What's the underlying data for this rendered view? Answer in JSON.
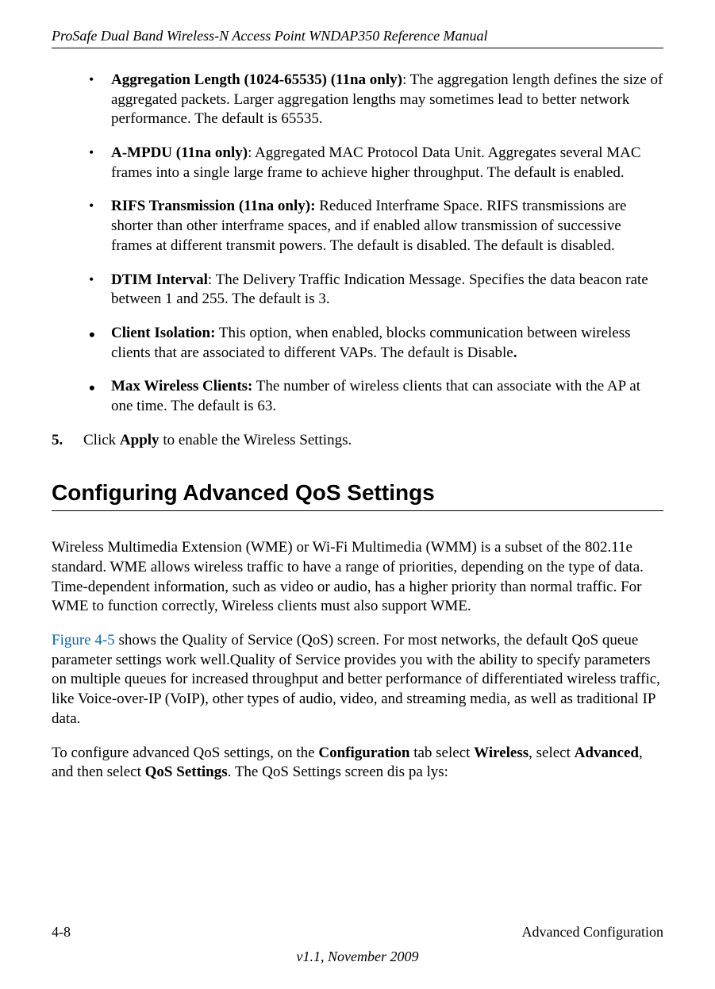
{
  "header": {
    "title": "ProSafe Dual Band Wireless-N Access Point WNDAP350 Reference Manual"
  },
  "bullets": [
    {
      "label": "Aggregation Length (1024-65535) (11na only)",
      "text": ": The aggregation length defines the size of aggregated packets. Larger aggregation lengths may sometimes lead to better network performance. The default is 65535.",
      "filled": false
    },
    {
      "label": "A-MPDU (11na only)",
      "text": ": Aggregated MAC Protocol Data Unit. Aggregates several MAC frames into a single large frame to achieve higher throughput. The default is enabled.",
      "filled": false
    },
    {
      "label": "RIFS Transmission (11na only):",
      "text": " Reduced Interframe Space. RIFS transmissions are shorter than other interframe spaces, and if enabled allow transmission of successive frames at different transmit powers. The default is disabled. The default is disabled.",
      "filled": false
    },
    {
      "label": "DTIM Interval",
      "text": ": The Delivery Traffic Indication Message. Specifies the data beacon rate between 1 and 255. The default is 3.",
      "filled": false
    },
    {
      "label": "Client Isolation:",
      "text": " This option, when enabled, blocks communication between wireless clients that are associated to different VAPs. The default is Disable",
      "trailing_bold": ".",
      "filled": true
    },
    {
      "label": "Max Wireless Clients:",
      "text": " The number of wireless clients that can associate with the AP at one time. The default is 63.",
      "filled": true
    }
  ],
  "step": {
    "number": "5.",
    "prefix": "Click ",
    "bold": "Apply",
    "suffix": " to enable the Wireless Settings."
  },
  "section": {
    "title": "Configuring Advanced QoS Settings"
  },
  "paragraphs": {
    "p1": "Wireless Multimedia Extension (WME) or Wi-Fi Multimedia (WMM) is a subset of the 802.11e standard. WME allows wireless traffic to have a range of priorities, depending on the type of data. Time-dependent information, such as video or audio, has a higher priority than normal traffic. For WME to function correctly, Wireless clients must also support WME.",
    "p2_link": "Figure 4-5",
    "p2_rest": " shows the Quality of Service (QoS) screen. For most networks, the default QoS queue parameter settings work well.Quality of Service provides you with the ability to specify parameters on multiple queues for increased throughput and better performance of differentiated wireless traffic, like Voice-over-IP (VoIP), other types of audio, video, and streaming media, as well as traditional IP data.",
    "p3_a": "To configure advanced QoS settings, on the ",
    "p3_b1": "Configuration",
    "p3_c": " tab select ",
    "p3_b2": "Wireless",
    "p3_d": ", select ",
    "p3_b3": "Advanced",
    "p3_e": ", and then select ",
    "p3_b4": "QoS Settings",
    "p3_f": ". The QoS Settings screen dis pa lys:"
  },
  "footer": {
    "page": "4-8",
    "section": "Advanced Configuration",
    "version": "v1.1, November 2009"
  }
}
